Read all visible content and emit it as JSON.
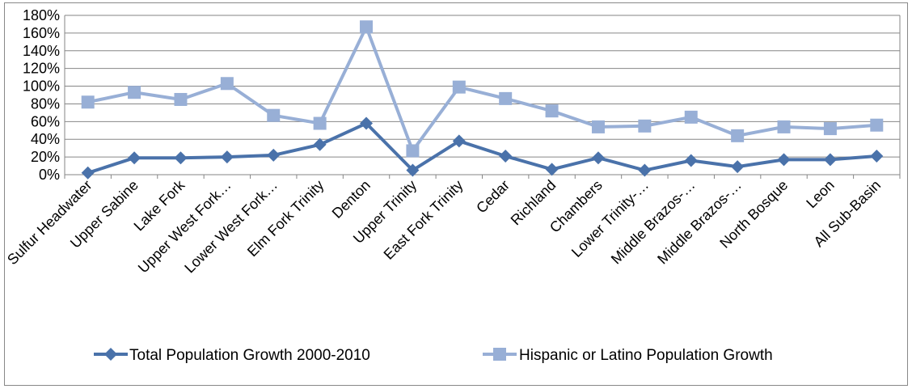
{
  "chart_data": {
    "type": "line",
    "categories": [
      "Sulfur Headwater",
      "Upper Sabine",
      "Lake Fork",
      "Upper West Fork…",
      "Lower West Fork…",
      "Elm Fork Trinity",
      "Denton",
      "Upper Trinity",
      "East Fork Trinity",
      "Cedar",
      "Richland",
      "Chambers",
      "Lower Trinity-…",
      "Middle Brazos-…",
      "Middle Brazos-…",
      "North Bosque",
      "Leon",
      "All Sub-Basin"
    ],
    "series": [
      {
        "name": "Total Population Growth 2000-2010",
        "color": "#4a72aa",
        "marker": "diamond",
        "values": [
          2,
          19,
          19,
          20,
          22,
          34,
          58,
          5,
          38,
          21,
          6,
          19,
          5,
          16,
          9,
          17,
          17,
          21
        ]
      },
      {
        "name": "Hispanic or Latino Population Growth",
        "color": "#98afd6",
        "marker": "square",
        "values": [
          82,
          93,
          85,
          103,
          67,
          58,
          167,
          27,
          99,
          86,
          72,
          54,
          55,
          65,
          44,
          54,
          52,
          56
        ]
      }
    ],
    "y_ticks": [
      "0%",
      "20%",
      "40%",
      "60%",
      "80%",
      "100%",
      "120%",
      "140%",
      "160%",
      "180%"
    ],
    "ylim": [
      0,
      180
    ],
    "grid": true,
    "legend_position": "bottom",
    "title": "",
    "xlabel": "",
    "ylabel": ""
  }
}
